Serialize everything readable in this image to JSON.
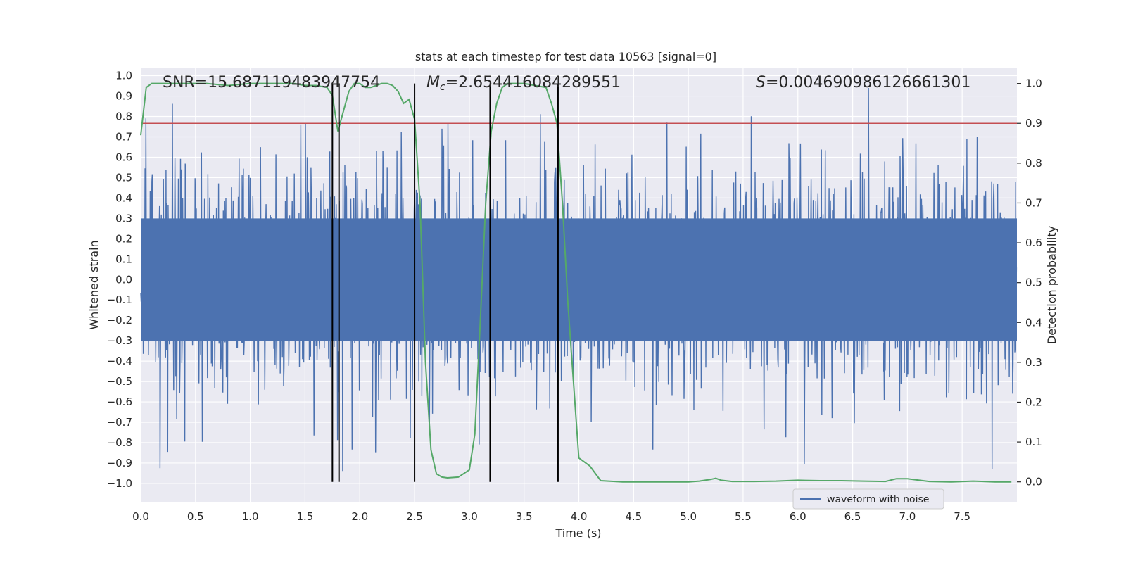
{
  "chart_data": {
    "type": "line",
    "title": "stats at each timestep for test data 10563 [signal=0]",
    "xlabel": "Time (s)",
    "ylabel": "Whitened strain",
    "y2label": "Detection probability",
    "xlim": [
      0.0,
      8.0
    ],
    "ylim": [
      -1.09,
      1.04
    ],
    "y2lim": [
      -0.05,
      1.04
    ],
    "xticks": [
      0.0,
      0.5,
      1.0,
      1.5,
      2.0,
      2.5,
      3.0,
      3.5,
      4.0,
      4.5,
      5.0,
      5.5,
      6.0,
      6.5,
      7.0,
      7.5
    ],
    "yticks": [
      -1.0,
      -0.9,
      -0.8,
      -0.7,
      -0.6,
      -0.5,
      -0.4,
      -0.3,
      -0.2,
      -0.1,
      0.0,
      0.1,
      0.2,
      0.3,
      0.4,
      0.5,
      0.6,
      0.7,
      0.8,
      0.9,
      1.0
    ],
    "y2ticks": [
      0.0,
      0.1,
      0.2,
      0.3,
      0.4,
      0.5,
      0.6,
      0.7,
      0.8,
      0.9,
      1.0
    ],
    "grid": true,
    "legend": {
      "location": "lower-right",
      "entries": [
        "waveform with noise"
      ]
    },
    "annotations": {
      "snr": "SNR=15.687119483947754",
      "mc_sym": "M",
      "mc_sub": "c",
      "mc_val": "=2.654416084289551",
      "s_sym": "S",
      "s_val": "=0.004690986126661301"
    },
    "threshold": {
      "axis": "y2",
      "value": 0.9,
      "color": "#c44e52"
    },
    "vlines": [
      1.75,
      1.81,
      2.5,
      3.19,
      3.81
    ],
    "series": [
      {
        "name": "waveform with noise",
        "axis": "y",
        "kind": "noise",
        "color": "#4c72b0",
        "duration": 8.0,
        "samples": 2048,
        "envelope": [
          0.45,
          0.6
        ]
      },
      {
        "axis": "y2",
        "color": "#55a868",
        "x": [
          0.0,
          0.05,
          0.1,
          0.15,
          0.2,
          0.4,
          0.6,
          0.8,
          1.0,
          1.2,
          1.4,
          1.5,
          1.6,
          1.7,
          1.75,
          1.8,
          1.85,
          1.9,
          1.95,
          2.0,
          2.05,
          2.1,
          2.15,
          2.2,
          2.25,
          2.3,
          2.35,
          2.4,
          2.45,
          2.5,
          2.55,
          2.6,
          2.65,
          2.7,
          2.75,
          2.8,
          2.9,
          3.0,
          3.05,
          3.1,
          3.15,
          3.2,
          3.25,
          3.3,
          3.35,
          3.4,
          3.5,
          3.6,
          3.7,
          3.75,
          3.8,
          3.85,
          3.9,
          4.0,
          4.1,
          4.2,
          4.4,
          4.6,
          4.8,
          5.0,
          5.1,
          5.2,
          5.25,
          5.3,
          5.4,
          5.6,
          5.8,
          6.0,
          6.2,
          6.4,
          6.6,
          6.8,
          6.9,
          7.0,
          7.2,
          7.4,
          7.6,
          7.8,
          7.95
        ],
        "y": [
          0.87,
          0.99,
          1.0,
          1.0,
          1.0,
          1.0,
          1.0,
          0.995,
          1.0,
          1.0,
          1.0,
          0.995,
          0.995,
          0.99,
          0.97,
          0.88,
          0.93,
          0.98,
          1.0,
          1.0,
          0.99,
          0.99,
          0.995,
          1.0,
          1.0,
          0.995,
          0.98,
          0.95,
          0.96,
          0.91,
          0.7,
          0.3,
          0.08,
          0.02,
          0.012,
          0.01,
          0.012,
          0.03,
          0.12,
          0.4,
          0.7,
          0.88,
          0.95,
          0.99,
          1.0,
          1.0,
          1.0,
          0.995,
          0.99,
          0.95,
          0.9,
          0.7,
          0.45,
          0.06,
          0.04,
          0.003,
          0.0,
          0.0,
          0.0,
          0.0,
          0.002,
          0.006,
          0.009,
          0.004,
          0.001,
          0.001,
          0.002,
          0.004,
          0.003,
          0.003,
          0.002,
          0.001,
          0.008,
          0.008,
          0.001,
          0.0,
          0.002,
          0.0,
          0.0
        ]
      }
    ]
  }
}
